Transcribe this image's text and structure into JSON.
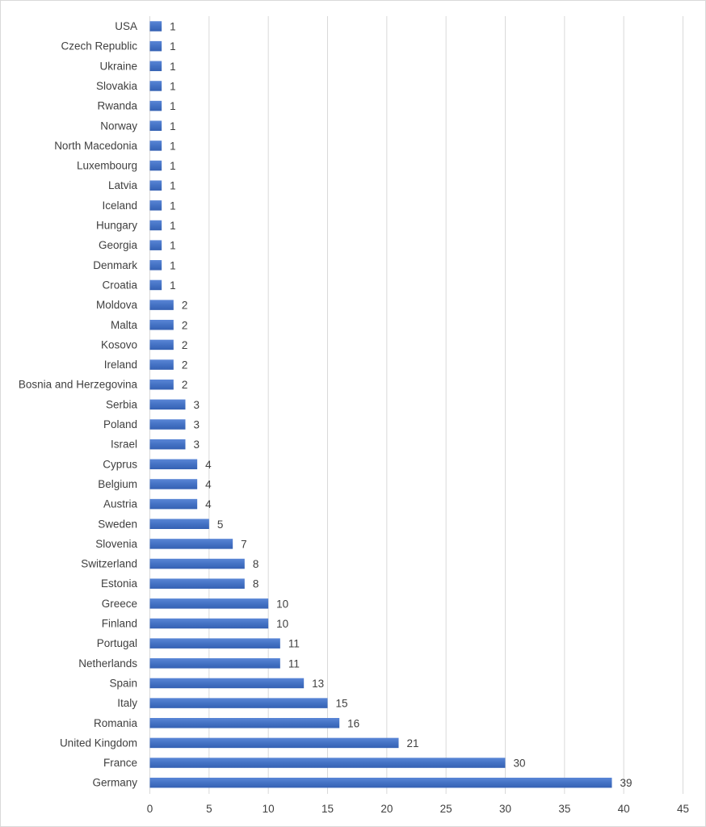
{
  "chart_data": {
    "type": "bar",
    "orientation": "horizontal",
    "title": "",
    "xlabel": "",
    "ylabel": "",
    "xlim": [
      0,
      45
    ],
    "x_ticks": [
      0,
      5,
      10,
      15,
      20,
      25,
      30,
      35,
      40,
      45
    ],
    "grid": "vertical",
    "legend": "none",
    "data_labels": true,
    "bar_color": "#4472c4",
    "categories": [
      "USA",
      "Czech Republic",
      "Ukraine",
      "Slovakia",
      "Rwanda",
      "Norway",
      "North Macedonia",
      "Luxembourg",
      "Latvia",
      "Iceland",
      "Hungary",
      "Georgia",
      "Denmark",
      "Croatia",
      "Moldova",
      "Malta",
      "Kosovo",
      "Ireland",
      "Bosnia and Herzegovina",
      "Serbia",
      "Poland",
      "Israel",
      "Cyprus",
      "Belgium",
      "Austria",
      "Sweden",
      "Slovenia",
      "Switzerland",
      "Estonia",
      "Greece",
      "Finland",
      "Portugal",
      "Netherlands",
      "Spain",
      "Italy",
      "Romania",
      "United Kingdom",
      "France",
      "Germany"
    ],
    "values": [
      1,
      1,
      1,
      1,
      1,
      1,
      1,
      1,
      1,
      1,
      1,
      1,
      1,
      1,
      2,
      2,
      2,
      2,
      2,
      3,
      3,
      3,
      4,
      4,
      4,
      5,
      7,
      8,
      8,
      10,
      10,
      11,
      11,
      13,
      15,
      16,
      21,
      30,
      39
    ]
  }
}
